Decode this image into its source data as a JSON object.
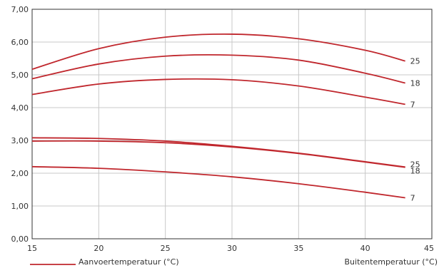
{
  "chart_data": {
    "type": "line",
    "title": "",
    "xlabel": "Buitentemperatuur (°C)",
    "ylabel": "",
    "xlim": [
      15,
      45
    ],
    "ylim": [
      0,
      7
    ],
    "x_ticks": [
      15,
      20,
      25,
      30,
      35,
      40,
      45
    ],
    "y_ticks": [
      0,
      1,
      2,
      3,
      4,
      5,
      6,
      7
    ],
    "y_tick_labels": [
      "0,00",
      "1,00",
      "2,00",
      "3,00",
      "4,00",
      "5,00",
      "6,00",
      "7,00"
    ],
    "x_tick_labels": [
      "15",
      "20",
      "25",
      "30",
      "35",
      "40",
      "45"
    ],
    "grid": true,
    "line_color": "#c0272d",
    "legend": {
      "label": "Aanvoertemperatuur (°C)",
      "position": "bottom-left"
    },
    "series": [
      {
        "name": "25",
        "x": [
          15,
          20,
          25,
          30,
          35,
          40,
          43
        ],
        "y": [
          5.17,
          5.8,
          6.15,
          6.24,
          6.1,
          5.75,
          5.42
        ]
      },
      {
        "name": "18",
        "x": [
          15,
          20,
          25,
          30,
          35,
          40,
          43
        ],
        "y": [
          4.88,
          5.33,
          5.57,
          5.6,
          5.45,
          5.05,
          4.75
        ]
      },
      {
        "name": "7",
        "x": [
          15,
          20,
          25,
          30,
          35,
          40,
          43
        ],
        "y": [
          4.4,
          4.72,
          4.86,
          4.85,
          4.66,
          4.32,
          4.1
        ]
      },
      {
        "name": "25",
        "x": [
          15,
          20,
          25,
          30,
          35,
          40,
          43
        ],
        "y": [
          3.08,
          3.06,
          2.98,
          2.82,
          2.61,
          2.35,
          2.19
        ]
      },
      {
        "name": "18",
        "x": [
          15,
          20,
          25,
          30,
          35,
          40,
          43
        ],
        "y": [
          2.98,
          2.98,
          2.93,
          2.8,
          2.6,
          2.34,
          2.18
        ]
      },
      {
        "name": "7",
        "x": [
          15,
          20,
          25,
          30,
          35,
          40,
          43
        ],
        "y": [
          2.2,
          2.15,
          2.04,
          1.89,
          1.68,
          1.42,
          1.25
        ]
      }
    ]
  }
}
